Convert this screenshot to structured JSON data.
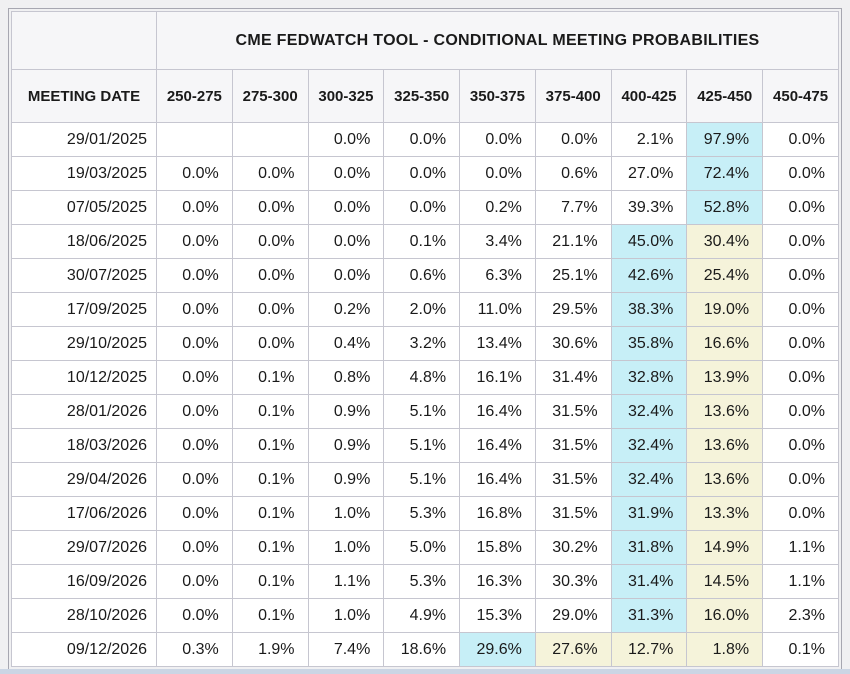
{
  "page": {
    "background": "#f0f0f2",
    "bottom_strip_color": "#cbd5e4"
  },
  "table": {
    "title": "CME FEDWATCH TOOL - CONDITIONAL MEETING PROBABILITIES",
    "meeting_date_header": "MEETING DATE",
    "rate_range_headers": [
      "250-275",
      "275-300",
      "300-325",
      "325-350",
      "350-375",
      "375-400",
      "400-425",
      "425-450",
      "450-475"
    ],
    "colors": {
      "cyan_highlight": "#c7eff7",
      "yellow_highlight": "#f5f3da"
    },
    "rows": [
      {
        "date": "29/01/2025",
        "values": [
          "",
          "",
          "0.0%",
          "0.0%",
          "0.0%",
          "0.0%",
          "2.1%",
          "97.9%",
          "0.0%"
        ],
        "cyan_index": 7,
        "yellow_indices": []
      },
      {
        "date": "19/03/2025",
        "values": [
          "0.0%",
          "0.0%",
          "0.0%",
          "0.0%",
          "0.0%",
          "0.6%",
          "27.0%",
          "72.4%",
          "0.0%"
        ],
        "cyan_index": 7,
        "yellow_indices": []
      },
      {
        "date": "07/05/2025",
        "values": [
          "0.0%",
          "0.0%",
          "0.0%",
          "0.0%",
          "0.2%",
          "7.7%",
          "39.3%",
          "52.8%",
          "0.0%"
        ],
        "cyan_index": 7,
        "yellow_indices": []
      },
      {
        "date": "18/06/2025",
        "values": [
          "0.0%",
          "0.0%",
          "0.0%",
          "0.1%",
          "3.4%",
          "21.1%",
          "45.0%",
          "30.4%",
          "0.0%"
        ],
        "cyan_index": 6,
        "yellow_indices": [
          7
        ]
      },
      {
        "date": "30/07/2025",
        "values": [
          "0.0%",
          "0.0%",
          "0.0%",
          "0.6%",
          "6.3%",
          "25.1%",
          "42.6%",
          "25.4%",
          "0.0%"
        ],
        "cyan_index": 6,
        "yellow_indices": [
          7
        ]
      },
      {
        "date": "17/09/2025",
        "values": [
          "0.0%",
          "0.0%",
          "0.2%",
          "2.0%",
          "11.0%",
          "29.5%",
          "38.3%",
          "19.0%",
          "0.0%"
        ],
        "cyan_index": 6,
        "yellow_indices": [
          7
        ]
      },
      {
        "date": "29/10/2025",
        "values": [
          "0.0%",
          "0.0%",
          "0.4%",
          "3.2%",
          "13.4%",
          "30.6%",
          "35.8%",
          "16.6%",
          "0.0%"
        ],
        "cyan_index": 6,
        "yellow_indices": [
          7
        ]
      },
      {
        "date": "10/12/2025",
        "values": [
          "0.0%",
          "0.1%",
          "0.8%",
          "4.8%",
          "16.1%",
          "31.4%",
          "32.8%",
          "13.9%",
          "0.0%"
        ],
        "cyan_index": 6,
        "yellow_indices": [
          7
        ]
      },
      {
        "date": "28/01/2026",
        "values": [
          "0.0%",
          "0.1%",
          "0.9%",
          "5.1%",
          "16.4%",
          "31.5%",
          "32.4%",
          "13.6%",
          "0.0%"
        ],
        "cyan_index": 6,
        "yellow_indices": [
          7
        ]
      },
      {
        "date": "18/03/2026",
        "values": [
          "0.0%",
          "0.1%",
          "0.9%",
          "5.1%",
          "16.4%",
          "31.5%",
          "32.4%",
          "13.6%",
          "0.0%"
        ],
        "cyan_index": 6,
        "yellow_indices": [
          7
        ]
      },
      {
        "date": "29/04/2026",
        "values": [
          "0.0%",
          "0.1%",
          "0.9%",
          "5.1%",
          "16.4%",
          "31.5%",
          "32.4%",
          "13.6%",
          "0.0%"
        ],
        "cyan_index": 6,
        "yellow_indices": [
          7
        ]
      },
      {
        "date": "17/06/2026",
        "values": [
          "0.0%",
          "0.1%",
          "1.0%",
          "5.3%",
          "16.8%",
          "31.5%",
          "31.9%",
          "13.3%",
          "0.0%"
        ],
        "cyan_index": 6,
        "yellow_indices": [
          7
        ]
      },
      {
        "date": "29/07/2026",
        "values": [
          "0.0%",
          "0.1%",
          "1.0%",
          "5.0%",
          "15.8%",
          "30.2%",
          "31.8%",
          "14.9%",
          "1.1%"
        ],
        "cyan_index": 6,
        "yellow_indices": [
          7
        ]
      },
      {
        "date": "16/09/2026",
        "values": [
          "0.0%",
          "0.1%",
          "1.1%",
          "5.3%",
          "16.3%",
          "30.3%",
          "31.4%",
          "14.5%",
          "1.1%"
        ],
        "cyan_index": 6,
        "yellow_indices": [
          7
        ]
      },
      {
        "date": "28/10/2026",
        "values": [
          "0.0%",
          "0.1%",
          "1.0%",
          "4.9%",
          "15.3%",
          "29.0%",
          "31.3%",
          "16.0%",
          "2.3%"
        ],
        "cyan_index": 6,
        "yellow_indices": [
          7
        ]
      },
      {
        "date": "09/12/2026",
        "values": [
          "0.3%",
          "1.9%",
          "7.4%",
          "18.6%",
          "29.6%",
          "27.6%",
          "12.7%",
          "1.8%",
          "0.1%"
        ],
        "cyan_index": 4,
        "yellow_indices": [
          5,
          6,
          7
        ]
      }
    ]
  }
}
